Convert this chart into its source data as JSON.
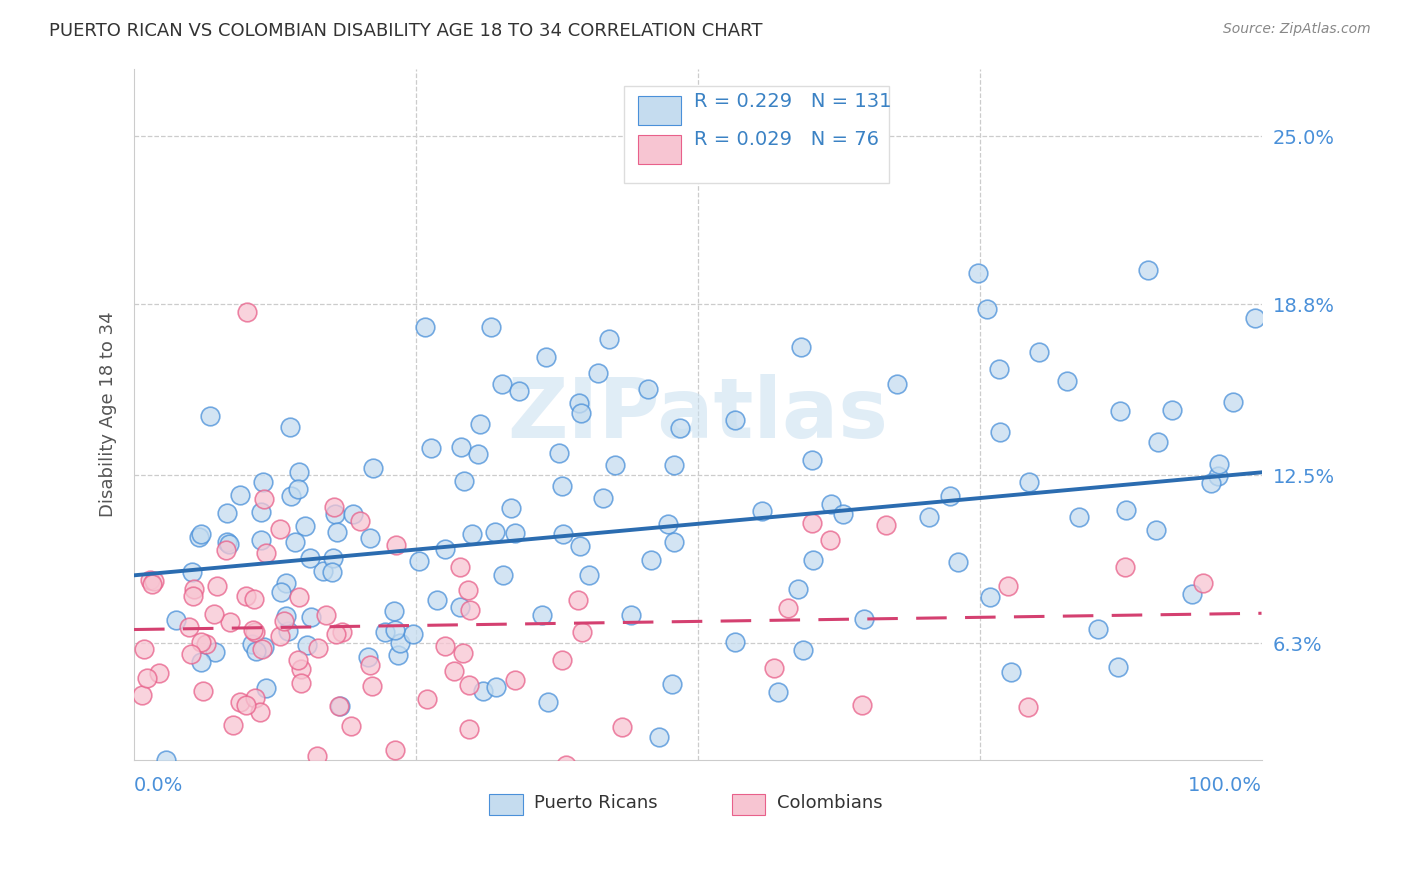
{
  "title": "PUERTO RICAN VS COLOMBIAN DISABILITY AGE 18 TO 34 CORRELATION CHART",
  "source": "Source: ZipAtlas.com",
  "ylabel": "Disability Age 18 to 34",
  "ytick_labels": [
    "6.3%",
    "12.5%",
    "18.8%",
    "25.0%"
  ],
  "ytick_values": [
    0.063,
    0.125,
    0.188,
    0.25
  ],
  "xmin": 0.0,
  "xmax": 1.0,
  "ymin": 0.02,
  "ymax": 0.275,
  "blue_fill": "#C5DCEF",
  "blue_edge": "#4A90D9",
  "pink_fill": "#F7C5D2",
  "pink_edge": "#E8608A",
  "blue_line_color": "#2B6CB0",
  "pink_line_color": "#D44070",
  "legend_text_color": "#3B82C4",
  "title_color": "#333333",
  "axis_label_color": "#4A90D9",
  "watermark": "ZIPatlas",
  "r_blue": 0.229,
  "n_blue": 131,
  "r_pink": 0.029,
  "n_pink": 76,
  "blue_intercept": 0.088,
  "blue_slope": 0.038,
  "pink_intercept": 0.068,
  "pink_slope": 0.006,
  "grid_color": "#CCCCCC",
  "legend_box_color": "#DDDDDD"
}
